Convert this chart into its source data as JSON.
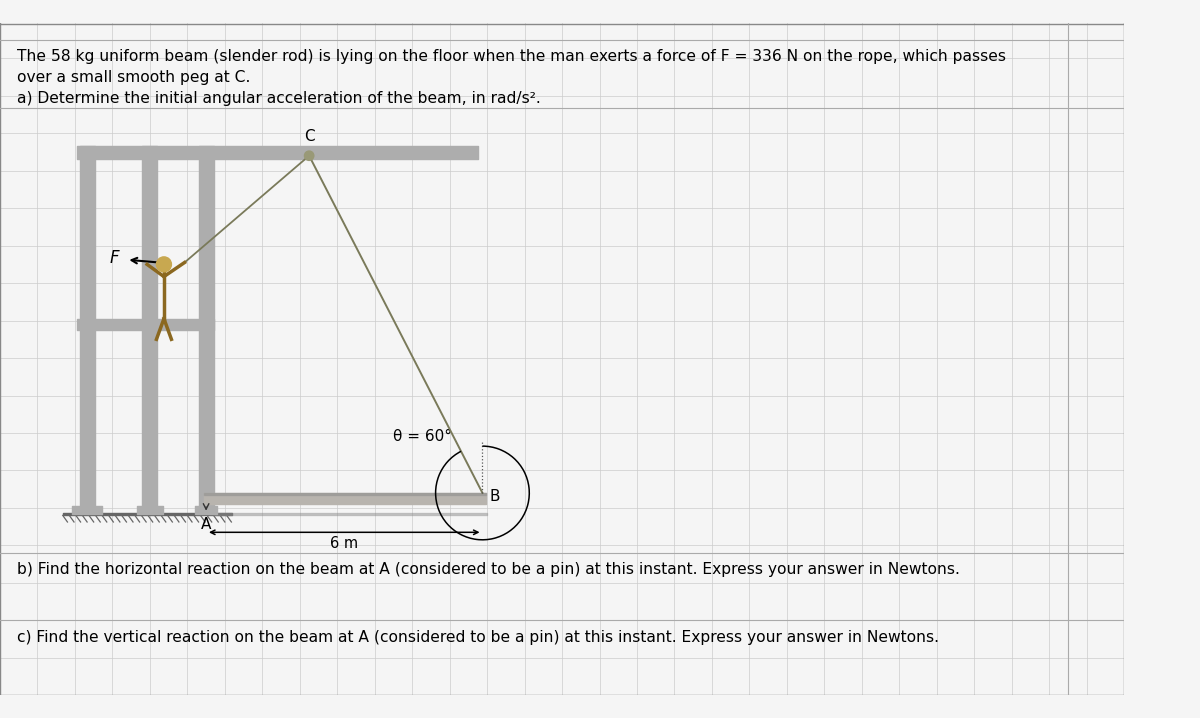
{
  "page_bg": "#f5f5f5",
  "grid_color": "#cccccc",
  "title_line1": "The 58 kg uniform beam (slender rod) is lying on the floor when the man exerts a force of F = 336 N on the rope, which passes",
  "title_line2": "over a small smooth peg at C.",
  "part_a": "a) Determine the initial angular acceleration of the beam, in rad/s².",
  "part_b": "b) Find the horizontal reaction on the beam at A (considered to be a pin) at this instant. Express your answer in Newtons.",
  "part_c": "c) Find the vertical reaction on the beam at A (considered to be a pin) at this instant. Express your answer in Newtons.",
  "beam_color": "#b8b4ae",
  "structure_color": "#adadad",
  "rope_color": "#7a7a5a",
  "ground_color": "#888888",
  "text_color": "#000000",
  "angle_text": "θ = 60°",
  "sep_color": "#aaaaaa",
  "border_color": "#888888"
}
